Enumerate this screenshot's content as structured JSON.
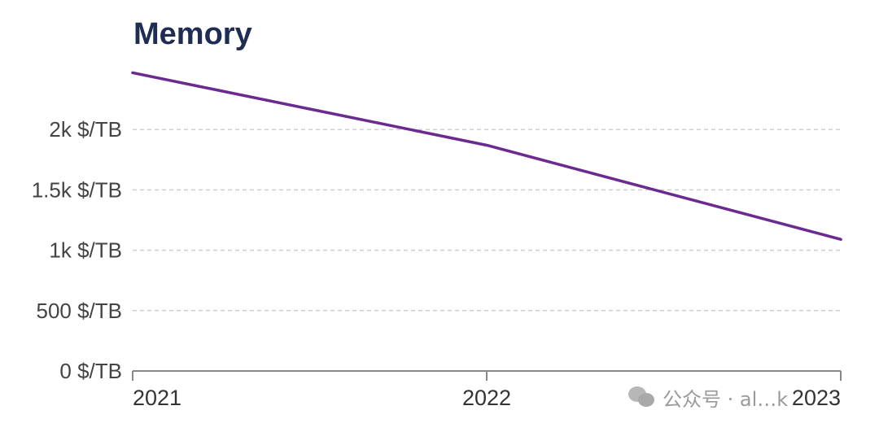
{
  "watermark": {
    "text": "公众号 · al…k",
    "icon": "wechat-icon"
  },
  "chart_data": {
    "type": "line",
    "title": "Memory",
    "xlabel": "",
    "ylabel": "",
    "x_ticks": [
      "2021",
      "2022",
      "2023"
    ],
    "y_ticks": [
      {
        "value": 0,
        "label": "0 $/TB"
      },
      {
        "value": 500,
        "label": "500 $/TB"
      },
      {
        "value": 1000,
        "label": "1k $/TB"
      },
      {
        "value": 1500,
        "label": "1.5k $/TB"
      },
      {
        "value": 2000,
        "label": "2k $/TB"
      }
    ],
    "ylim": [
      0,
      2500
    ],
    "xlim": [
      2021,
      2023
    ],
    "grid": true,
    "legend": "none",
    "colors": {
      "title": "#1f2d52",
      "series": "#6a2a8f"
    },
    "series": [
      {
        "x": [
          2021,
          2022,
          2023
        ],
        "values": [
          2470,
          1870,
          1090
        ]
      }
    ]
  }
}
